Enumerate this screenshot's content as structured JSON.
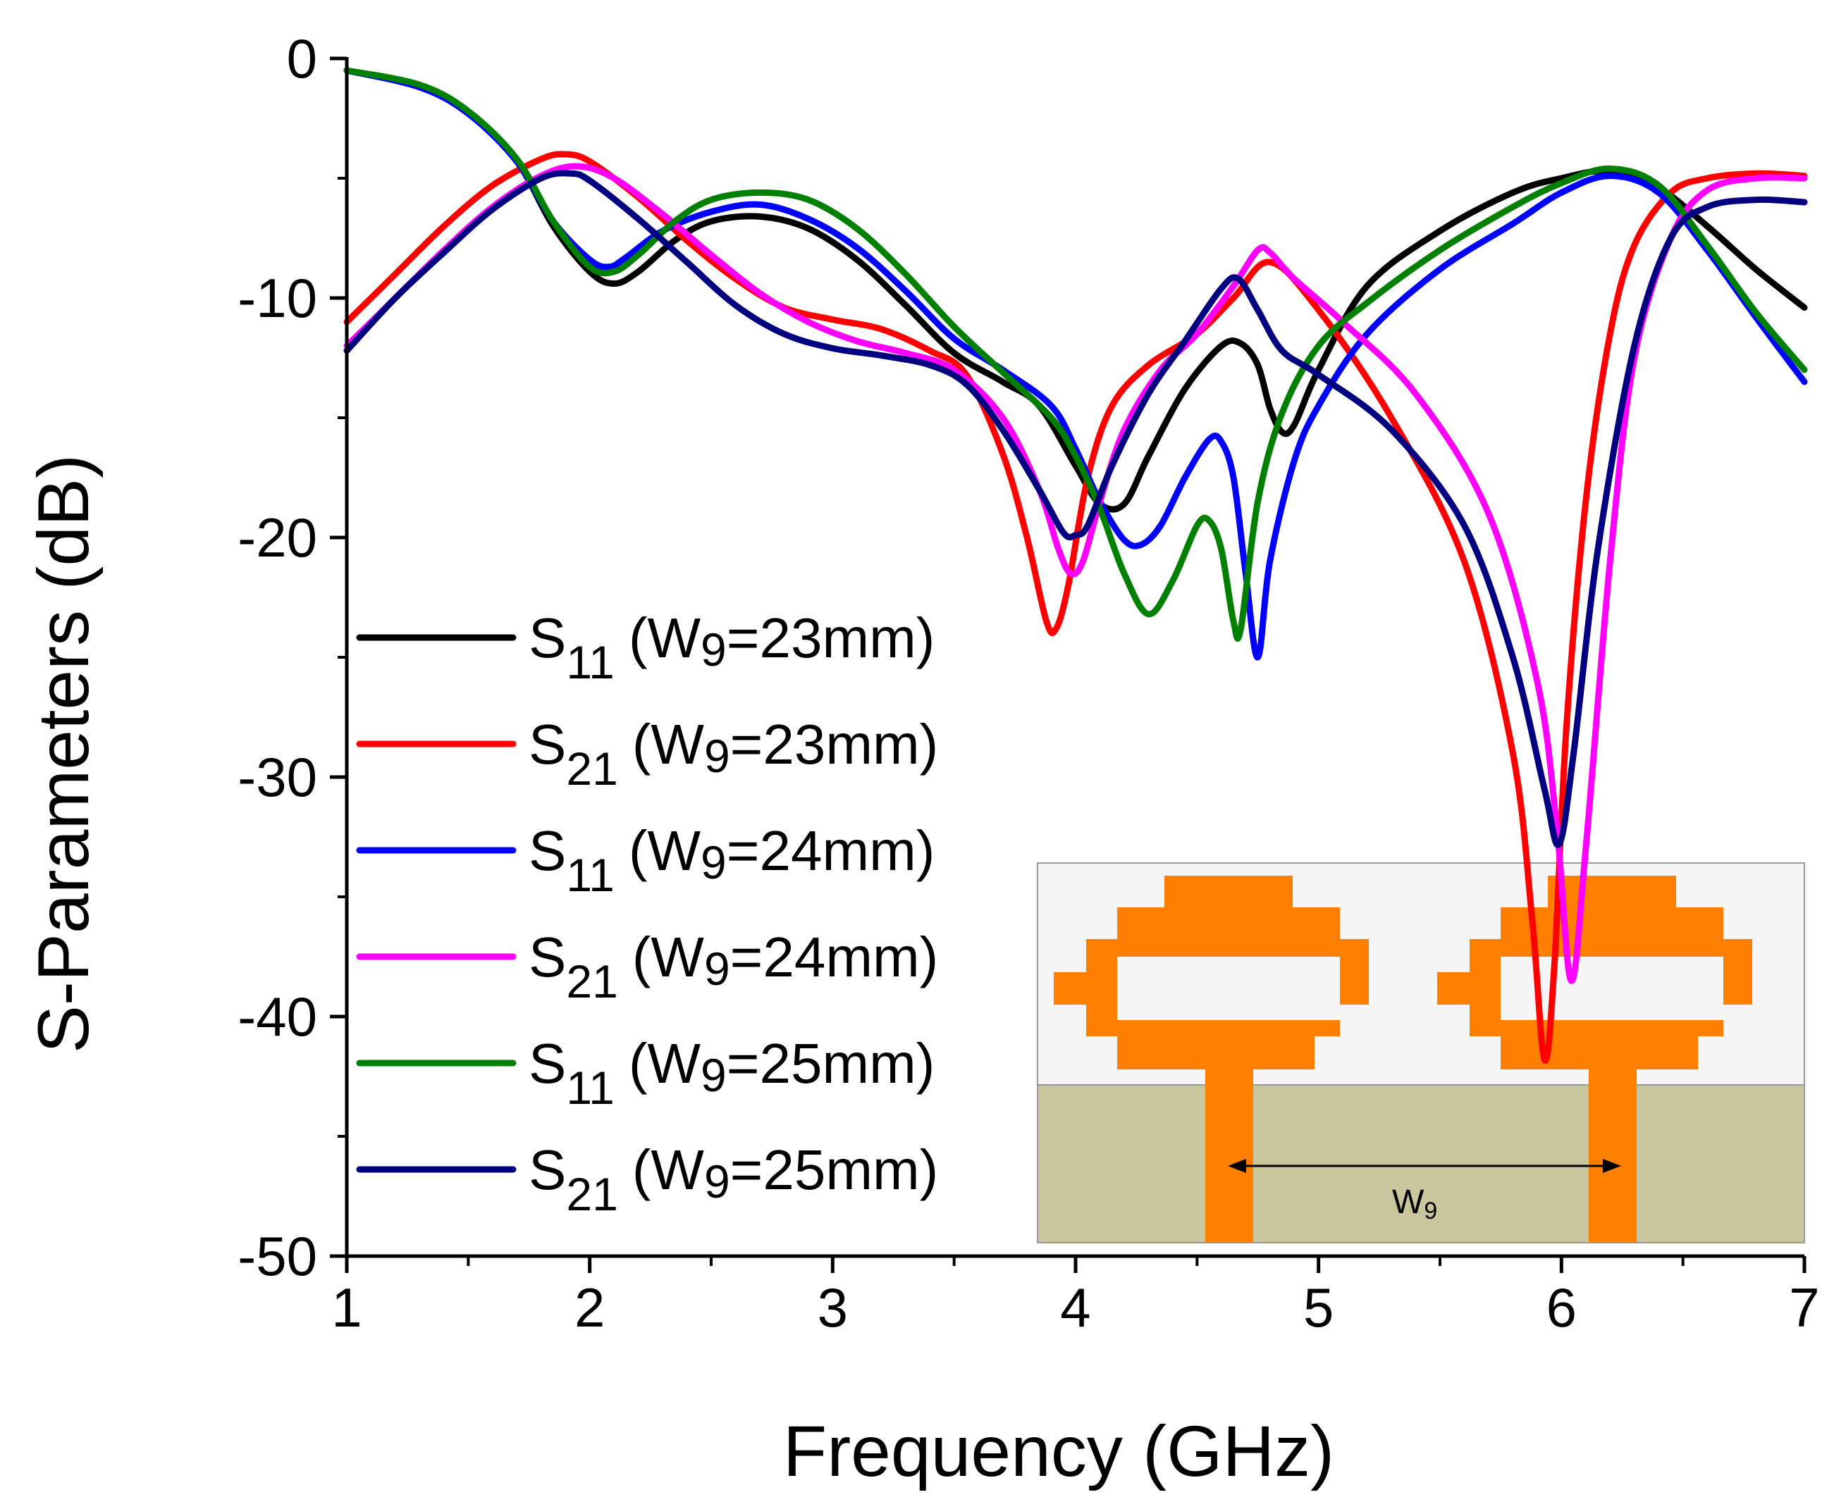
{
  "chart_data": {
    "type": "line",
    "title": "",
    "xlabel": "Frequency (GHz)",
    "ylabel": "S-Parameters (dB)",
    "xlim": [
      1,
      7
    ],
    "ylim": [
      -50,
      0
    ],
    "xticks": [
      1,
      2,
      3,
      4,
      5,
      6,
      7
    ],
    "yticks": [
      0,
      -10,
      -20,
      -30,
      -40,
      -50
    ],
    "xtick_labels": [
      "1",
      "2",
      "3",
      "4",
      "5",
      "6",
      "7"
    ],
    "ytick_labels": [
      "0",
      "-10",
      "-20",
      "-30",
      "-40",
      "-50"
    ],
    "legend_position": "left-lower",
    "series": [
      {
        "name": "S11 (W9=23mm)",
        "param": "S",
        "sub": "11",
        "lp": "(W",
        "wsub": "9",
        "lval": "=23mm)",
        "color": "#000000",
        "x": [
          1.0,
          1.3,
          1.5,
          1.7,
          1.85,
          2.0,
          2.1,
          2.2,
          2.35,
          2.5,
          2.7,
          2.9,
          3.1,
          3.3,
          3.5,
          3.7,
          3.85,
          4.0,
          4.1,
          4.2,
          4.3,
          4.45,
          4.6,
          4.68,
          4.75,
          4.8,
          4.85,
          4.9,
          5.0,
          5.2,
          5.5,
          5.8,
          6.0,
          6.2,
          6.4,
          6.6,
          6.8,
          7.0
        ],
        "y": [
          -0.5,
          -1.2,
          -2.3,
          -4.3,
          -7.0,
          -8.9,
          -9.4,
          -8.9,
          -7.6,
          -6.8,
          -6.6,
          -7.1,
          -8.4,
          -10.3,
          -12.3,
          -13.5,
          -14.5,
          -17.0,
          -18.6,
          -18.6,
          -16.6,
          -13.8,
          -12.0,
          -11.9,
          -12.8,
          -14.6,
          -15.6,
          -15.3,
          -13.0,
          -9.5,
          -7.2,
          -5.6,
          -5.0,
          -4.7,
          -5.4,
          -7.0,
          -8.8,
          -10.4
        ]
      },
      {
        "name": "S21 (W9=23mm)",
        "param": "S",
        "sub": "21",
        "lp": "(W",
        "wsub": "9",
        "lval": "=23mm)",
        "color": "#ff0000",
        "x": [
          1.0,
          1.2,
          1.4,
          1.6,
          1.8,
          1.9,
          2.0,
          2.2,
          2.4,
          2.6,
          2.8,
          3.0,
          3.2,
          3.4,
          3.55,
          3.7,
          3.8,
          3.88,
          3.92,
          3.97,
          4.05,
          4.15,
          4.3,
          4.5,
          4.65,
          4.8,
          5.0,
          5.3,
          5.6,
          5.8,
          5.88,
          5.93,
          5.97,
          6.02,
          6.1,
          6.2,
          6.3,
          6.45,
          6.6,
          6.8,
          7.0
        ],
        "y": [
          -11.0,
          -9.0,
          -7.0,
          -5.3,
          -4.2,
          -4.0,
          -4.3,
          -5.8,
          -7.6,
          -9.2,
          -10.4,
          -10.9,
          -11.3,
          -12.2,
          -13.2,
          -16.5,
          -20.0,
          -23.5,
          -23.8,
          -22.0,
          -17.5,
          -14.5,
          -12.8,
          -11.5,
          -10.0,
          -8.5,
          -10.5,
          -15.0,
          -21.0,
          -29.0,
          -36.0,
          -41.8,
          -38.0,
          -28.0,
          -18.5,
          -11.5,
          -7.8,
          -5.6,
          -5.0,
          -4.8,
          -4.9
        ]
      },
      {
        "name": "S11 (W9=24mm)",
        "param": "S",
        "sub": "11",
        "lp": "(W",
        "wsub": "9",
        "lval": "=24mm)",
        "color": "#0000ff",
        "x": [
          1.0,
          1.3,
          1.5,
          1.7,
          1.85,
          2.0,
          2.08,
          2.15,
          2.3,
          2.5,
          2.7,
          2.9,
          3.1,
          3.3,
          3.5,
          3.7,
          3.9,
          4.0,
          4.1,
          4.2,
          4.27,
          4.35,
          4.45,
          4.55,
          4.6,
          4.65,
          4.7,
          4.75,
          4.8,
          4.9,
          5.0,
          5.2,
          5.5,
          5.8,
          6.0,
          6.2,
          6.4,
          6.6,
          6.8,
          7.0
        ],
        "y": [
          -0.5,
          -1.2,
          -2.3,
          -4.3,
          -6.8,
          -8.4,
          -8.7,
          -8.3,
          -7.2,
          -6.4,
          -6.1,
          -6.7,
          -7.9,
          -9.7,
          -11.7,
          -13.0,
          -14.5,
          -16.3,
          -18.5,
          -20.1,
          -20.3,
          -19.5,
          -17.5,
          -15.9,
          -16.0,
          -17.5,
          -21.5,
          -25.0,
          -21.0,
          -16.8,
          -14.5,
          -11.5,
          -8.8,
          -6.9,
          -5.6,
          -4.9,
          -5.6,
          -8.0,
          -10.8,
          -13.5
        ]
      },
      {
        "name": "S21 (W9=24mm)",
        "param": "S",
        "sub": "21",
        "lp": "(W",
        "wsub": "9",
        "lval": "=24mm)",
        "color": "#ff00ff",
        "x": [
          1.0,
          1.2,
          1.4,
          1.6,
          1.8,
          1.95,
          2.1,
          2.3,
          2.5,
          2.7,
          2.9,
          3.1,
          3.3,
          3.5,
          3.7,
          3.85,
          3.93,
          3.98,
          4.03,
          4.1,
          4.2,
          4.35,
          4.5,
          4.65,
          4.75,
          4.8,
          4.9,
          5.1,
          5.4,
          5.7,
          5.9,
          5.98,
          6.04,
          6.1,
          6.2,
          6.3,
          6.45,
          6.6,
          6.8,
          7.0
        ],
        "y": [
          -12.0,
          -10.0,
          -8.0,
          -6.2,
          -4.9,
          -4.5,
          -5.0,
          -6.5,
          -8.2,
          -9.8,
          -11.0,
          -11.8,
          -12.3,
          -13.0,
          -15.0,
          -18.0,
          -20.5,
          -21.5,
          -21.0,
          -18.5,
          -15.5,
          -13.0,
          -11.5,
          -9.5,
          -8.0,
          -8.1,
          -9.2,
          -11.0,
          -14.0,
          -19.0,
          -26.0,
          -32.0,
          -38.5,
          -33.0,
          -21.0,
          -12.5,
          -7.5,
          -5.5,
          -5.0,
          -5.0
        ]
      },
      {
        "name": "S11 (W9=25mm)",
        "param": "S",
        "sub": "11",
        "lp": "(W",
        "wsub": "9",
        "lval": "=25mm)",
        "color": "#008000",
        "x": [
          1.0,
          1.3,
          1.5,
          1.7,
          1.85,
          2.0,
          2.1,
          2.2,
          2.35,
          2.5,
          2.7,
          2.9,
          3.1,
          3.3,
          3.5,
          3.7,
          3.9,
          4.0,
          4.1,
          4.2,
          4.3,
          4.4,
          4.5,
          4.55,
          4.6,
          4.65,
          4.68,
          4.75,
          4.85,
          5.0,
          5.2,
          5.5,
          5.8,
          6.0,
          6.2,
          6.4,
          6.6,
          6.8,
          7.0
        ],
        "y": [
          -0.5,
          -1.1,
          -2.2,
          -4.2,
          -6.8,
          -8.7,
          -8.9,
          -8.2,
          -6.8,
          -5.9,
          -5.6,
          -5.9,
          -7.1,
          -9.0,
          -11.2,
          -13.1,
          -15.0,
          -16.6,
          -18.8,
          -21.5,
          -23.2,
          -21.8,
          -19.5,
          -19.3,
          -20.5,
          -23.5,
          -23.8,
          -18.5,
          -14.8,
          -12.0,
          -10.2,
          -8.0,
          -6.2,
          -5.2,
          -4.6,
          -5.3,
          -7.8,
          -10.6,
          -13.0
        ]
      },
      {
        "name": "S21 (W9=25mm)",
        "param": "S",
        "sub": "21",
        "lp": "(W",
        "wsub": "9",
        "lval": "=25mm)",
        "color": "#000080",
        "x": [
          1.0,
          1.2,
          1.4,
          1.6,
          1.8,
          1.92,
          2.0,
          2.2,
          2.4,
          2.6,
          2.8,
          3.0,
          3.2,
          3.4,
          3.55,
          3.7,
          3.85,
          3.95,
          4.0,
          4.05,
          4.15,
          4.3,
          4.45,
          4.6,
          4.67,
          4.75,
          4.85,
          5.0,
          5.3,
          5.6,
          5.8,
          5.93,
          5.99,
          6.05,
          6.15,
          6.3,
          6.45,
          6.6,
          6.8,
          7.0
        ],
        "y": [
          -12.2,
          -10.0,
          -8.1,
          -6.3,
          -5.0,
          -4.8,
          -5.1,
          -6.7,
          -8.5,
          -10.3,
          -11.5,
          -12.1,
          -12.4,
          -12.8,
          -13.6,
          -15.5,
          -18.0,
          -19.8,
          -19.9,
          -19.5,
          -17.0,
          -14.0,
          -11.8,
          -9.6,
          -9.2,
          -10.5,
          -12.2,
          -13.2,
          -15.5,
          -19.5,
          -25.0,
          -30.5,
          -32.8,
          -29.0,
          -20.5,
          -12.0,
          -7.5,
          -6.2,
          -5.9,
          -6.0
        ]
      }
    ]
  },
  "inset": {
    "label_main": "W",
    "label_sub": "9",
    "patch_color": "#ff7f00",
    "substrate_color": "#c9c59c",
    "background_color": "#f5f5f5"
  }
}
